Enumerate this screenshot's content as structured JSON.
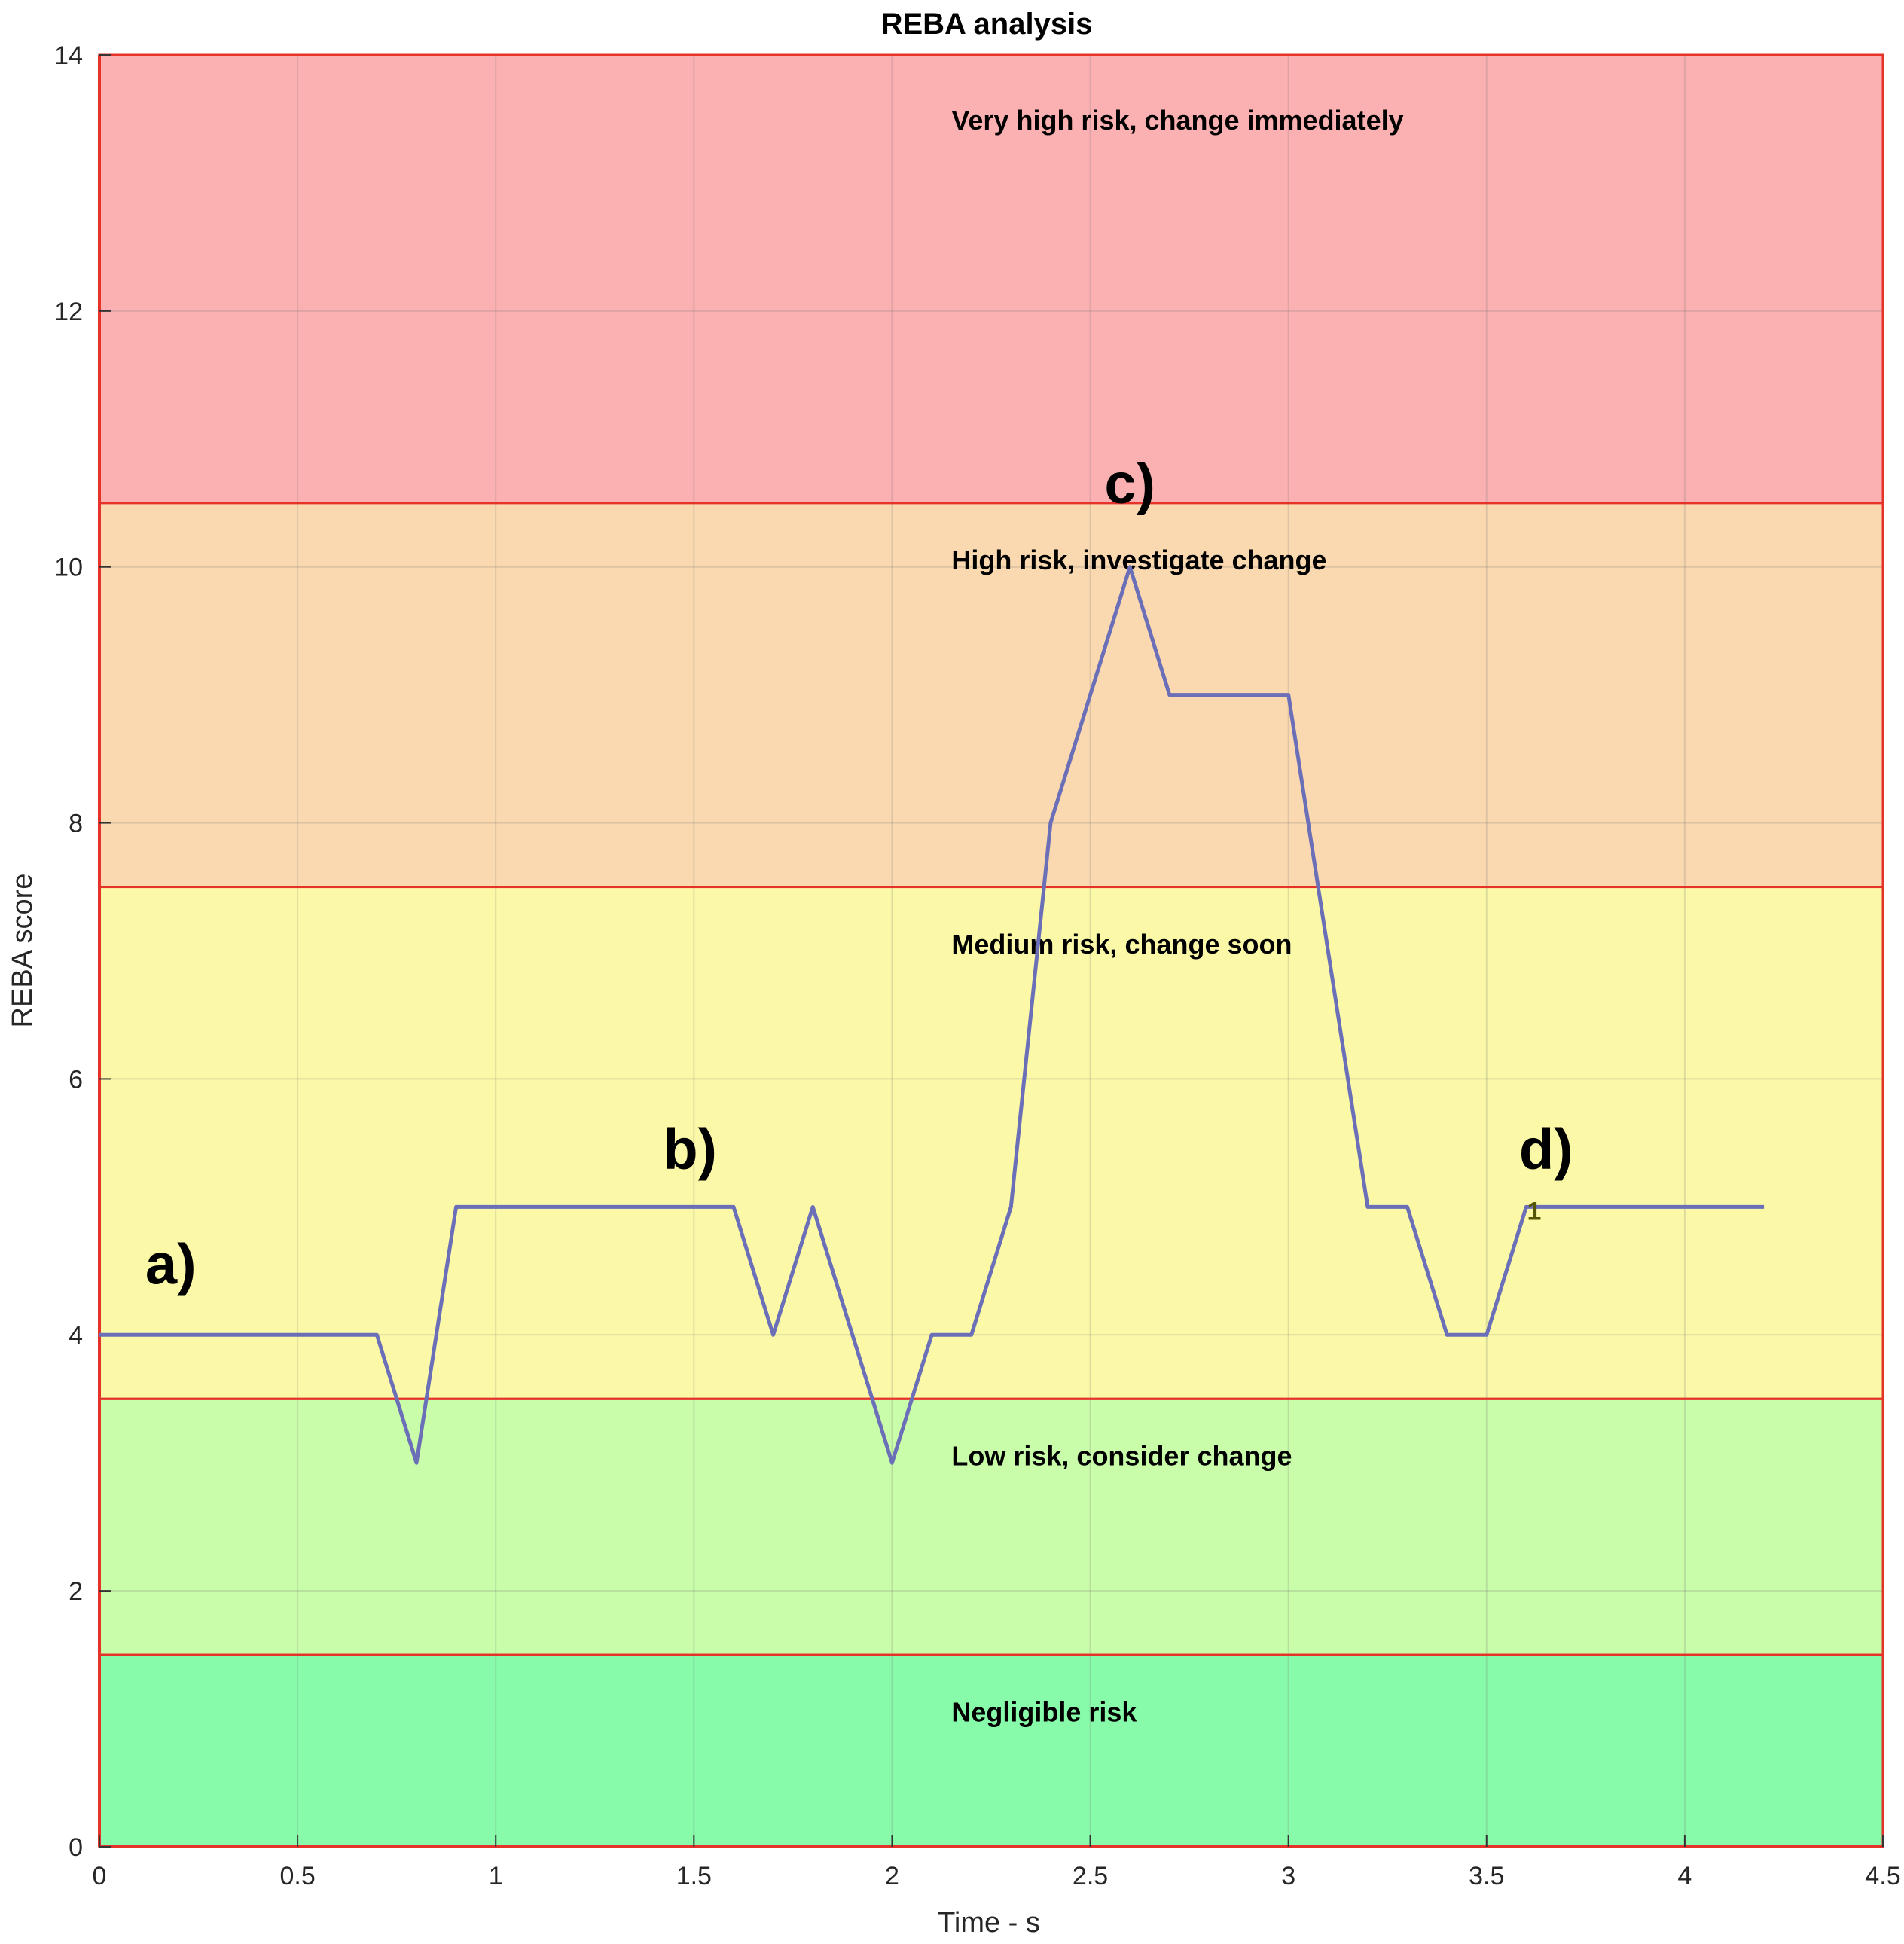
{
  "chart_data": {
    "type": "line",
    "title": "REBA analysis",
    "xlabel": "Time - s",
    "ylabel": "REBA score",
    "xlim": [
      0,
      4.5
    ],
    "ylim": [
      0,
      14
    ],
    "xticks": [
      0,
      0.5,
      1,
      1.5,
      2,
      2.5,
      3,
      3.5,
      4,
      4.5
    ],
    "xtick_labels": [
      "0",
      "0.5",
      "1",
      "1.5",
      "2",
      "2.5",
      "3",
      "3.5",
      "4",
      "4.5"
    ],
    "yticks": [
      0,
      2,
      4,
      6,
      8,
      10,
      12,
      14
    ],
    "ytick_labels": [
      "0",
      "2",
      "4",
      "6",
      "8",
      "10",
      "12",
      "14"
    ],
    "grid": true,
    "zones": [
      {
        "label": "Negligible risk",
        "from": 0,
        "to": 1.5,
        "color": "#88fbaa"
      },
      {
        "label": "Low risk, consider change",
        "from": 1.5,
        "to": 3.5,
        "color": "#c9fdaa"
      },
      {
        "label": "Medium risk, change soon",
        "from": 3.5,
        "to": 7.5,
        "color": "#fbf9a8"
      },
      {
        "label": "High risk, investigate change",
        "from": 7.5,
        "to": 10.5,
        "color": "#fad9b0"
      },
      {
        "label": "Very high risk, change immediately",
        "from": 10.5,
        "to": 14,
        "color": "#fbb0b1"
      }
    ],
    "zone_border_color": "#e5332a",
    "series": [
      {
        "color": "#6a6fb8",
        "x": [
          0,
          0.1,
          0.2,
          0.3,
          0.4,
          0.5,
          0.6,
          0.7,
          0.8,
          0.9,
          1.0,
          1.1,
          1.2,
          1.3,
          1.4,
          1.5,
          1.6,
          1.7,
          1.8,
          1.9,
          2.0,
          2.1,
          2.2,
          2.3,
          2.4,
          2.5,
          2.6,
          2.7,
          2.8,
          2.9,
          3.0,
          3.1,
          3.2,
          3.3,
          3.4,
          3.5,
          3.6,
          3.7,
          3.8,
          3.9,
          4.0,
          4.1,
          4.2
        ],
        "y": [
          4,
          4,
          4,
          4,
          4,
          4,
          4,
          4,
          3,
          5,
          5,
          5,
          5,
          5,
          5,
          5,
          5,
          4,
          5,
          4,
          3,
          4,
          4,
          5,
          8,
          9,
          10,
          9,
          9,
          9,
          9,
          7,
          5,
          5,
          4,
          4,
          5,
          5,
          5,
          5,
          5,
          5,
          5
        ]
      }
    ],
    "annotations": [
      {
        "text": "a)",
        "x": 0.18,
        "y": 4.4
      },
      {
        "text": "b)",
        "x": 1.49,
        "y": 5.3
      },
      {
        "text": "c)",
        "x": 2.6,
        "y": 10.5
      },
      {
        "text": "d)",
        "x": 3.65,
        "y": 5.3
      }
    ],
    "small_annotations": [
      {
        "text": "1",
        "x": 3.62,
        "y": 4.9
      }
    ]
  }
}
